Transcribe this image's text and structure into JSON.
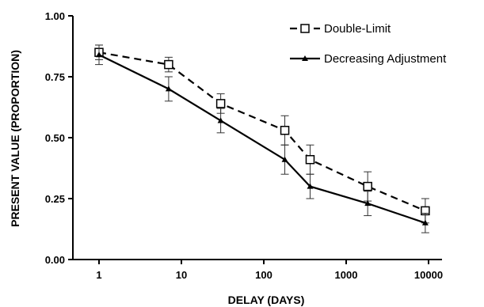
{
  "chart_data": {
    "type": "line",
    "title": "",
    "xlabel": "DELAY (DAYS)",
    "ylabel": "PRESENT VALUE (PROPORTION)",
    "x_scale": "log",
    "xlim": [
      1,
      10000
    ],
    "ylim": [
      0,
      1
    ],
    "x_tick_labels": [
      "1",
      "10",
      "100",
      "1000",
      "10000"
    ],
    "y_tick_labels": [
      "0.00",
      "0.25",
      "0.50",
      "0.75",
      "1.00"
    ],
    "grid": false,
    "legend_position": "top-right",
    "series": [
      {
        "name": "Double-Limit",
        "line_style": "dashed",
        "marker": "open-square",
        "color": "#000000",
        "points": [
          {
            "x": 1,
            "y": 0.85,
            "err": 0.03
          },
          {
            "x": 7,
            "y": 0.8,
            "err": 0.03
          },
          {
            "x": 30,
            "y": 0.64,
            "err": 0.04
          },
          {
            "x": 180,
            "y": 0.53,
            "err": 0.06
          },
          {
            "x": 365,
            "y": 0.41,
            "err": 0.06
          },
          {
            "x": 1825,
            "y": 0.3,
            "err": 0.06
          },
          {
            "x": 9125,
            "y": 0.2,
            "err": 0.05
          }
        ]
      },
      {
        "name": "Decreasing Adjustment",
        "line_style": "solid",
        "marker": "filled-triangle",
        "color": "#000000",
        "points": [
          {
            "x": 1,
            "y": 0.84,
            "err": 0.04
          },
          {
            "x": 7,
            "y": 0.7,
            "err": 0.05
          },
          {
            "x": 30,
            "y": 0.57,
            "err": 0.05
          },
          {
            "x": 180,
            "y": 0.41,
            "err": 0.06
          },
          {
            "x": 365,
            "y": 0.3,
            "err": 0.05
          },
          {
            "x": 1825,
            "y": 0.23,
            "err": 0.05
          },
          {
            "x": 9125,
            "y": 0.15,
            "err": 0.04
          }
        ]
      }
    ]
  }
}
